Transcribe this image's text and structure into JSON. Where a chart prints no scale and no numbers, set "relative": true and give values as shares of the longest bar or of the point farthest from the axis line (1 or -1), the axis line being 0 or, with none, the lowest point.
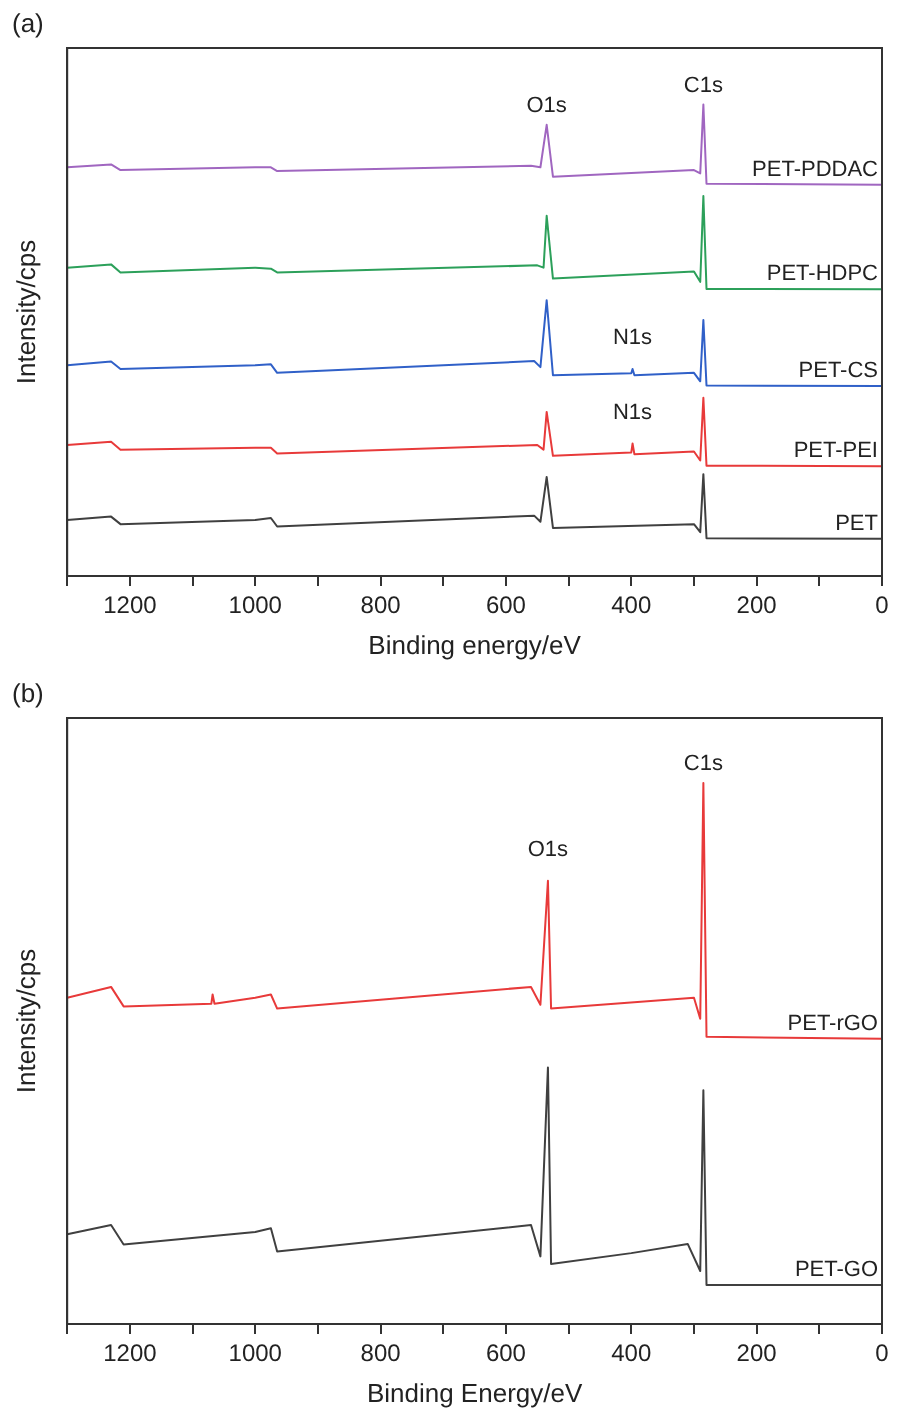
{
  "chart_data": [
    {
      "type": "line",
      "title": "(a)",
      "xlabel": "Binding energy/eV",
      "ylabel": "Intensity/cps",
      "relative": true,
      "xlim": [
        1300,
        0
      ],
      "xticks": [
        {
          "value": 1300,
          "label": null
        },
        1200,
        {
          "value": 1100,
          "label": null
        },
        1000,
        {
          "value": 900,
          "label": null
        },
        800,
        {
          "value": 700,
          "label": null
        },
        600,
        {
          "value": 500,
          "label": null
        },
        400,
        {
          "value": 300,
          "label": null
        },
        200,
        {
          "value": 100,
          "label": null
        },
        0
      ],
      "grid": false,
      "legend": false,
      "marker": "none",
      "line_style": "solid",
      "series": [
        {
          "name": "PET-PDDAC",
          "color": "#a066c0",
          "x": [
            1300,
            1230,
            1215,
            1000,
            975,
            965,
            560,
            545,
            535,
            525,
            300,
            290,
            285,
            280,
            0
          ],
          "values": [
            0.867,
            0.873,
            0.861,
            0.867,
            0.867,
            0.859,
            0.87,
            0.867,
            0.957,
            0.847,
            0.861,
            0.854,
            1,
            0.832,
            0.83
          ]
        },
        {
          "name": "PET-HDPC",
          "color": "#2ca05a",
          "x": [
            1300,
            1230,
            1215,
            1000,
            975,
            965,
            550,
            540,
            535,
            525,
            300,
            290,
            285,
            280,
            0
          ],
          "values": [
            0.654,
            0.661,
            0.644,
            0.654,
            0.652,
            0.644,
            0.659,
            0.654,
            0.764,
            0.631,
            0.646,
            0.624,
            0.806,
            0.609,
            0.608
          ]
        },
        {
          "name": "PET-CS",
          "color": "#3060c8",
          "x": [
            1300,
            1230,
            1215,
            1000,
            975,
            965,
            555,
            545,
            535,
            525,
            400,
            398,
            395,
            300,
            290,
            285,
            280,
            0
          ],
          "values": [
            0.447,
            0.455,
            0.439,
            0.447,
            0.449,
            0.431,
            0.456,
            0.443,
            0.585,
            0.426,
            0.43,
            0.439,
            0.426,
            0.431,
            0.413,
            0.543,
            0.404,
            0.403
          ]
        },
        {
          "name": "PET-PEI",
          "color": "#e83a3a",
          "x": [
            1300,
            1230,
            1215,
            1000,
            975,
            965,
            550,
            540,
            535,
            525,
            400,
            398,
            395,
            300,
            290,
            285,
            280,
            0
          ],
          "values": [
            0.278,
            0.285,
            0.268,
            0.272,
            0.272,
            0.26,
            0.278,
            0.268,
            0.348,
            0.255,
            0.262,
            0.281,
            0.258,
            0.264,
            0.245,
            0.378,
            0.234,
            0.233
          ]
        },
        {
          "name": "PET",
          "color": "#404040",
          "x": [
            1300,
            1230,
            1215,
            1000,
            975,
            965,
            555,
            545,
            535,
            525,
            300,
            290,
            285,
            280,
            0
          ],
          "values": [
            0.119,
            0.126,
            0.11,
            0.119,
            0.123,
            0.105,
            0.128,
            0.115,
            0.21,
            0.102,
            0.11,
            0.093,
            0.216,
            0.08,
            0.079
          ]
        }
      ],
      "annotations": [
        {
          "text": "O1s",
          "x": 535,
          "y": 0.957
        },
        {
          "text": "C1s",
          "x": 285,
          "y": 1
        },
        {
          "text": "N1s",
          "x": 398,
          "y": 0.439
        },
        {
          "text": "N1s",
          "x": 398,
          "y": 0.281
        }
      ]
    },
    {
      "type": "line",
      "title": "(b)",
      "xlabel": "Binding Energy/eV",
      "ylabel": "Intensity/cps",
      "relative": true,
      "xlim": [
        1300,
        0
      ],
      "xticks": [
        {
          "value": 1300,
          "label": null
        },
        1200,
        {
          "value": 1100,
          "label": null
        },
        1000,
        {
          "value": 900,
          "label": null
        },
        800,
        {
          "value": 700,
          "label": null
        },
        600,
        {
          "value": 500,
          "label": null
        },
        400,
        {
          "value": 300,
          "label": null
        },
        200,
        {
          "value": 100,
          "label": null
        },
        0
      ],
      "grid": false,
      "legend": false,
      "marker": "none",
      "line_style": "solid",
      "series": [
        {
          "name": "PET-rGO",
          "color": "#e83a3a",
          "x": [
            1300,
            1230,
            1210,
            1070,
            1068,
            1065,
            1000,
            975,
            965,
            560,
            545,
            533,
            528,
            300,
            290,
            285,
            280,
            0
          ],
          "values": [
            0.603,
            0.623,
            0.587,
            0.592,
            0.609,
            0.592,
            0.603,
            0.609,
            0.583,
            0.623,
            0.59,
            0.819,
            0.583,
            0.603,
            0.564,
            1,
            0.531,
            0.527
          ]
        },
        {
          "name": "PET-GO",
          "color": "#404040",
          "x": [
            1300,
            1230,
            1210,
            1000,
            975,
            965,
            560,
            545,
            533,
            528,
            400,
            310,
            290,
            285,
            280,
            0
          ],
          "values": [
            0.166,
            0.183,
            0.147,
            0.17,
            0.177,
            0.134,
            0.183,
            0.125,
            0.474,
            0.111,
            0.131,
            0.148,
            0.098,
            0.432,
            0.072,
            0.072
          ]
        }
      ],
      "annotations": [
        {
          "text": "O1s",
          "x": 533,
          "y": 0.819
        },
        {
          "text": "C1s",
          "x": 285,
          "y": 1
        }
      ]
    }
  ]
}
